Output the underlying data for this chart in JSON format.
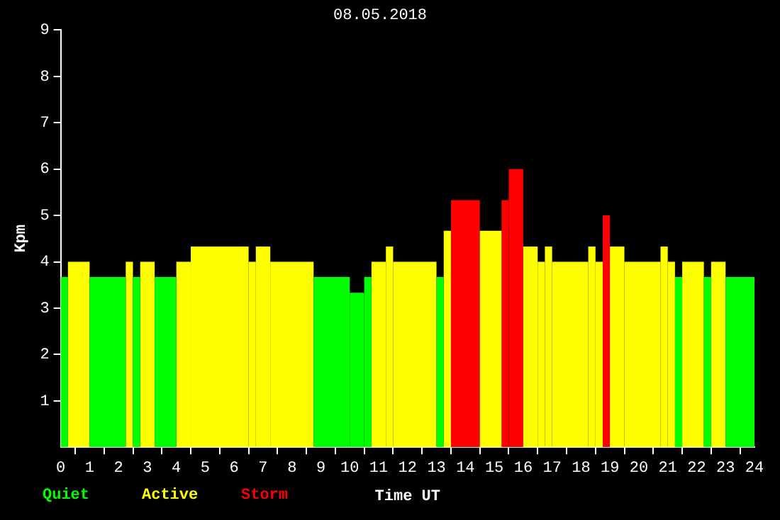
{
  "chart_data": {
    "type": "histogram",
    "title": "08.05.2018",
    "xlabel": "Time UT",
    "ylabel": "Kpm",
    "bins": [
      0,
      0.25,
      1,
      2.25,
      2.5,
      2.75,
      3.25,
      4,
      4.5,
      6.5,
      6.75,
      7.25,
      8.75,
      10,
      10.5,
      10.75,
      11.25,
      11.5,
      13,
      13.25,
      13.5,
      14.5,
      15.25,
      15.5,
      16,
      16.5,
      16.75,
      17,
      18.25,
      18.5,
      18.75,
      19,
      19.5,
      20.75,
      21,
      21.25,
      21.5,
      22.25,
      22.5,
      23,
      24
    ],
    "series": [
      {
        "name": "Quiet",
        "color": "#00ff00",
        "values": [
          3.67,
          null,
          3.67,
          null,
          3.67,
          null,
          3.67,
          null,
          null,
          null,
          null,
          null,
          3.67,
          3.33,
          3.67,
          null,
          null,
          null,
          3.67,
          null,
          null,
          null,
          null,
          null,
          null,
          null,
          null,
          null,
          null,
          null,
          null,
          null,
          null,
          null,
          null,
          3.67,
          null,
          3.67,
          null,
          3.67
        ]
      },
      {
        "name": "Active",
        "color": "#ffff00",
        "values": [
          null,
          4,
          null,
          4,
          null,
          4,
          null,
          4,
          4.33,
          4,
          4.33,
          4,
          null,
          null,
          null,
          4,
          4.33,
          4,
          null,
          4.67,
          null,
          4.67,
          null,
          null,
          4.33,
          4,
          4.33,
          4,
          4.33,
          4,
          null,
          4.33,
          4,
          4.33,
          4,
          null,
          4,
          null,
          4,
          null
        ]
      },
      {
        "name": "Storm",
        "color": "#ff0000",
        "values": [
          null,
          null,
          null,
          null,
          null,
          null,
          null,
          null,
          null,
          null,
          null,
          null,
          null,
          null,
          null,
          null,
          null,
          null,
          null,
          null,
          5.33,
          null,
          5.33,
          6,
          null,
          null,
          null,
          null,
          null,
          null,
          5,
          null,
          null,
          null,
          null,
          null,
          null,
          null,
          null,
          null
        ]
      }
    ],
    "xlim": [
      0,
      24
    ],
    "xticks": [
      0,
      1,
      2,
      3,
      4,
      5,
      6,
      7,
      8,
      9,
      10,
      11,
      12,
      13,
      14,
      15,
      16,
      17,
      18,
      19,
      20,
      21,
      22,
      23,
      24
    ],
    "ylim": [
      0,
      9
    ],
    "yticks": [
      1,
      2,
      3,
      4,
      5,
      6,
      7,
      8,
      9
    ],
    "grid": false,
    "legend": "bottom left"
  }
}
